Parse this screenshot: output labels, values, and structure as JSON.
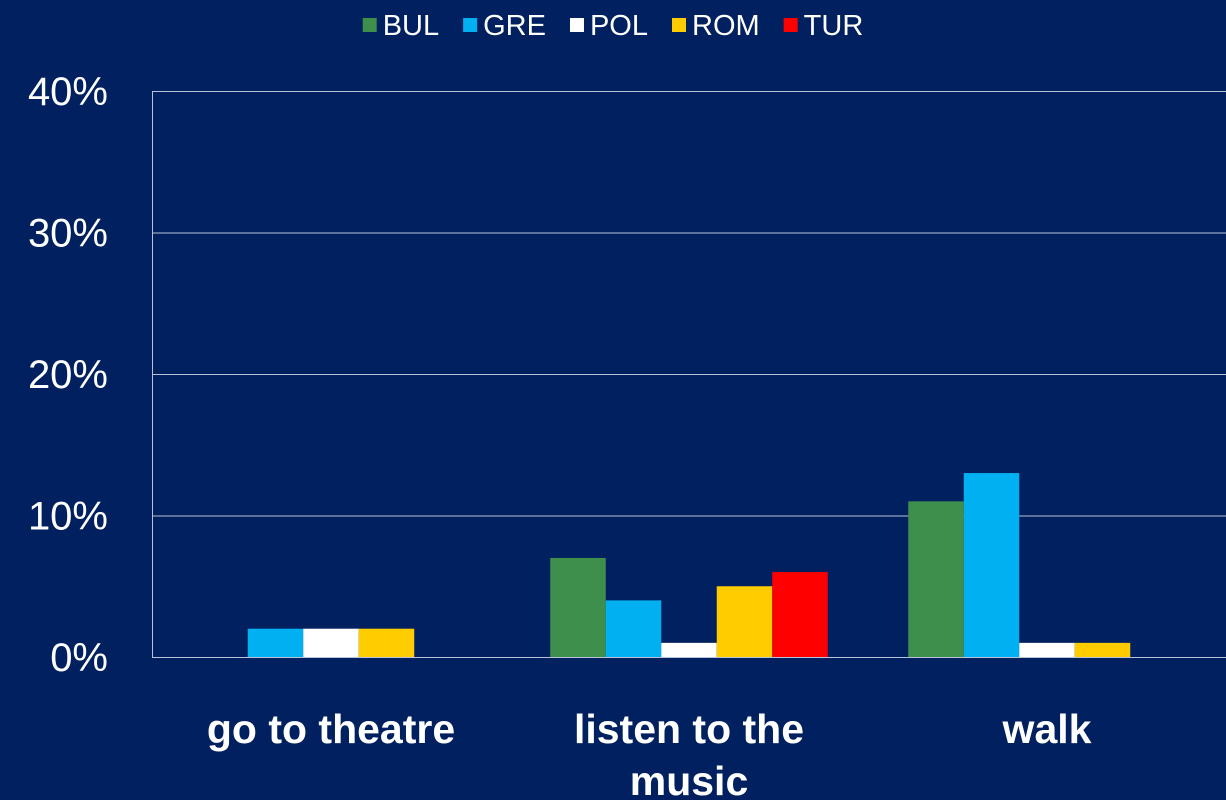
{
  "chart_data": {
    "type": "bar",
    "categories": [
      "go to theatre",
      "listen to the music",
      "walk"
    ],
    "category_label_lines": [
      [
        "go to theatre"
      ],
      [
        "listen to the",
        "music"
      ],
      [
        "walk"
      ]
    ],
    "series": [
      {
        "name": "BUL",
        "color": "#3f8f4c",
        "values": [
          0,
          7,
          11
        ]
      },
      {
        "name": "GRE",
        "color": "#00b0f0",
        "values": [
          2,
          4,
          13
        ]
      },
      {
        "name": "POL",
        "color": "#ffffff",
        "values": [
          2,
          1,
          1
        ]
      },
      {
        "name": "ROM",
        "color": "#ffcc00",
        "values": [
          2,
          5,
          1
        ]
      },
      {
        "name": "TUR",
        "color": "#ff0000",
        "values": [
          0,
          6,
          0
        ]
      }
    ],
    "ylim": [
      0,
      40
    ],
    "yticks": [
      0,
      10,
      20,
      30,
      40
    ],
    "ytick_labels": [
      "0%",
      "10%",
      "20%",
      "30%",
      "40%"
    ],
    "title": "",
    "xlabel": "",
    "ylabel": "",
    "grid": true,
    "legend_position": "top-center"
  },
  "colors": {
    "background": "#00205f",
    "gridline": "#b8c2d8",
    "text": "#ffffff"
  }
}
